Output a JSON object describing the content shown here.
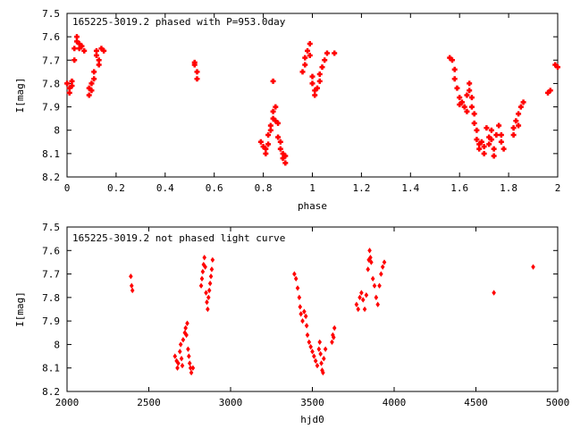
{
  "chart_data": [
    {
      "type": "scatter",
      "title": "165225-3019.2 phased with P=953.0day",
      "xlabel": "phase",
      "ylabel": "I[mag]",
      "xlim": [
        0,
        2
      ],
      "ylim": [
        8.2,
        7.5
      ],
      "y_inverted": true,
      "xticks": [
        0,
        0.2,
        0.4,
        0.6,
        0.8,
        1,
        1.2,
        1.4,
        1.6,
        1.8,
        2
      ],
      "xtick_labels": [
        "0",
        "0.2",
        "0.4",
        "0.6",
        "0.8",
        "1",
        "1.2",
        "1.4",
        "1.6",
        "1.8",
        "2"
      ],
      "yticks": [
        7.5,
        7.6,
        7.7,
        7.8,
        7.9,
        8.0,
        8.1,
        8.2
      ],
      "ytick_labels": [
        "7.5",
        "7.6",
        "7.7",
        "7.8",
        "7.9",
        "8",
        "8.1",
        "8.2"
      ],
      "grid": false,
      "marker": "plus",
      "color": "#ff0000",
      "points": [
        [
          0.0,
          7.8
        ],
        [
          0.01,
          7.82
        ],
        [
          0.01,
          7.84
        ],
        [
          0.02,
          7.79
        ],
        [
          0.02,
          7.81
        ],
        [
          0.03,
          7.7
        ],
        [
          0.03,
          7.65
        ],
        [
          0.04,
          7.62
        ],
        [
          0.04,
          7.6
        ],
        [
          0.05,
          7.63
        ],
        [
          0.05,
          7.65
        ],
        [
          0.06,
          7.64
        ],
        [
          0.07,
          7.66
        ],
        [
          0.09,
          7.82
        ],
        [
          0.09,
          7.85
        ],
        [
          0.1,
          7.83
        ],
        [
          0.1,
          7.8
        ],
        [
          0.11,
          7.78
        ],
        [
          0.11,
          7.75
        ],
        [
          0.12,
          7.68
        ],
        [
          0.12,
          7.66
        ],
        [
          0.13,
          7.7
        ],
        [
          0.13,
          7.72
        ],
        [
          0.14,
          7.65
        ],
        [
          0.15,
          7.66
        ],
        [
          0.52,
          7.71
        ],
        [
          0.52,
          7.72
        ],
        [
          0.53,
          7.75
        ],
        [
          0.53,
          7.78
        ],
        [
          0.79,
          8.05
        ],
        [
          0.8,
          8.07
        ],
        [
          0.81,
          8.08
        ],
        [
          0.81,
          8.1
        ],
        [
          0.82,
          8.06
        ],
        [
          0.82,
          8.02
        ],
        [
          0.83,
          8.0
        ],
        [
          0.83,
          7.98
        ],
        [
          0.84,
          7.95
        ],
        [
          0.84,
          7.92
        ],
        [
          0.84,
          7.79
        ],
        [
          0.85,
          7.9
        ],
        [
          0.85,
          7.96
        ],
        [
          0.86,
          7.97
        ],
        [
          0.86,
          8.03
        ],
        [
          0.87,
          8.05
        ],
        [
          0.87,
          8.08
        ],
        [
          0.88,
          8.1
        ],
        [
          0.88,
          8.12
        ],
        [
          0.89,
          8.14
        ],
        [
          0.89,
          8.11
        ],
        [
          0.96,
          7.75
        ],
        [
          0.97,
          7.72
        ],
        [
          0.97,
          7.69
        ],
        [
          0.98,
          7.66
        ],
        [
          0.99,
          7.63
        ],
        [
          0.99,
          7.68
        ],
        [
          1.0,
          7.77
        ],
        [
          1.0,
          7.8
        ],
        [
          1.01,
          7.83
        ],
        [
          1.01,
          7.85
        ],
        [
          1.02,
          7.82
        ],
        [
          1.03,
          7.79
        ],
        [
          1.03,
          7.76
        ],
        [
          1.04,
          7.73
        ],
        [
          1.05,
          7.7
        ],
        [
          1.06,
          7.67
        ],
        [
          1.09,
          7.67
        ],
        [
          1.56,
          7.69
        ],
        [
          1.57,
          7.7
        ],
        [
          1.58,
          7.74
        ],
        [
          1.58,
          7.78
        ],
        [
          1.59,
          7.82
        ],
        [
          1.6,
          7.86
        ],
        [
          1.6,
          7.89
        ],
        [
          1.61,
          7.88
        ],
        [
          1.62,
          7.9
        ],
        [
          1.63,
          7.92
        ],
        [
          1.63,
          7.85
        ],
        [
          1.64,
          7.8
        ],
        [
          1.64,
          7.83
        ],
        [
          1.65,
          7.86
        ],
        [
          1.65,
          7.9
        ],
        [
          1.66,
          7.93
        ],
        [
          1.66,
          7.97
        ],
        [
          1.67,
          8.0
        ],
        [
          1.67,
          8.04
        ],
        [
          1.68,
          8.06
        ],
        [
          1.68,
          8.08
        ],
        [
          1.69,
          8.05
        ],
        [
          1.7,
          8.1
        ],
        [
          1.7,
          8.07
        ],
        [
          1.71,
          7.99
        ],
        [
          1.72,
          8.03
        ],
        [
          1.72,
          8.06
        ],
        [
          1.73,
          8.0
        ],
        [
          1.73,
          8.04
        ],
        [
          1.74,
          8.08
        ],
        [
          1.74,
          8.11
        ],
        [
          1.75,
          8.02
        ],
        [
          1.76,
          7.98
        ],
        [
          1.77,
          8.02
        ],
        [
          1.77,
          8.05
        ],
        [
          1.78,
          8.08
        ],
        [
          1.82,
          8.02
        ],
        [
          1.82,
          7.99
        ],
        [
          1.83,
          7.96
        ],
        [
          1.84,
          7.93
        ],
        [
          1.84,
          7.98
        ],
        [
          1.85,
          7.9
        ],
        [
          1.86,
          7.88
        ],
        [
          1.96,
          7.84
        ],
        [
          1.97,
          7.83
        ],
        [
          1.99,
          7.72
        ],
        [
          2.0,
          7.73
        ]
      ]
    },
    {
      "type": "scatter",
      "title": "165225-3019.2 not phased light curve",
      "xlabel": "hjd0",
      "ylabel": "I[mag]",
      "xlim": [
        2000,
        5000
      ],
      "ylim": [
        8.2,
        7.5
      ],
      "y_inverted": true,
      "xticks": [
        2000,
        2500,
        3000,
        3500,
        4000,
        4500,
        5000
      ],
      "xtick_labels": [
        "2000",
        "2500",
        "3000",
        "3500",
        "4000",
        "4500",
        "5000"
      ],
      "yticks": [
        7.5,
        7.6,
        7.7,
        7.8,
        7.9,
        8.0,
        8.1,
        8.2
      ],
      "ytick_labels": [
        "7.5",
        "7.6",
        "7.7",
        "7.8",
        "7.9",
        "8",
        "8.1",
        "8.2"
      ],
      "grid": false,
      "marker": "diamond",
      "color": "#ff0000",
      "points": [
        [
          2390,
          7.71
        ],
        [
          2395,
          7.75
        ],
        [
          2400,
          7.77
        ],
        [
          2660,
          8.05
        ],
        [
          2670,
          8.07
        ],
        [
          2675,
          8.1
        ],
        [
          2680,
          8.08
        ],
        [
          2690,
          8.03
        ],
        [
          2695,
          8.0
        ],
        [
          2700,
          8.06
        ],
        [
          2705,
          8.09
        ],
        [
          2710,
          7.98
        ],
        [
          2720,
          7.95
        ],
        [
          2725,
          7.93
        ],
        [
          2730,
          7.96
        ],
        [
          2735,
          7.91
        ],
        [
          2740,
          8.02
        ],
        [
          2745,
          8.05
        ],
        [
          2750,
          8.08
        ],
        [
          2755,
          8.1
        ],
        [
          2760,
          8.12
        ],
        [
          2770,
          8.1
        ],
        [
          2820,
          7.75
        ],
        [
          2825,
          7.72
        ],
        [
          2830,
          7.69
        ],
        [
          2835,
          7.66
        ],
        [
          2840,
          7.63
        ],
        [
          2845,
          7.67
        ],
        [
          2850,
          7.78
        ],
        [
          2855,
          7.82
        ],
        [
          2860,
          7.85
        ],
        [
          2865,
          7.8
        ],
        [
          2870,
          7.77
        ],
        [
          2875,
          7.74
        ],
        [
          2880,
          7.71
        ],
        [
          2885,
          7.68
        ],
        [
          2890,
          7.64
        ],
        [
          3390,
          7.7
        ],
        [
          3400,
          7.72
        ],
        [
          3410,
          7.76
        ],
        [
          3420,
          7.8
        ],
        [
          3425,
          7.84
        ],
        [
          3430,
          7.87
        ],
        [
          3440,
          7.9
        ],
        [
          3450,
          7.86
        ],
        [
          3460,
          7.88
        ],
        [
          3465,
          7.92
        ],
        [
          3470,
          7.96
        ],
        [
          3480,
          7.99
        ],
        [
          3490,
          8.01
        ],
        [
          3500,
          8.03
        ],
        [
          3510,
          8.05
        ],
        [
          3520,
          8.07
        ],
        [
          3530,
          8.09
        ],
        [
          3540,
          8.02
        ],
        [
          3545,
          7.99
        ],
        [
          3550,
          8.04
        ],
        [
          3555,
          8.08
        ],
        [
          3560,
          8.11
        ],
        [
          3565,
          8.12
        ],
        [
          3570,
          8.06
        ],
        [
          3580,
          8.02
        ],
        [
          3620,
          7.99
        ],
        [
          3625,
          7.96
        ],
        [
          3630,
          7.97
        ],
        [
          3635,
          7.93
        ],
        [
          3770,
          7.83
        ],
        [
          3780,
          7.85
        ],
        [
          3790,
          7.8
        ],
        [
          3800,
          7.78
        ],
        [
          3810,
          7.81
        ],
        [
          3820,
          7.85
        ],
        [
          3830,
          7.79
        ],
        [
          3840,
          7.68
        ],
        [
          3845,
          7.64
        ],
        [
          3850,
          7.6
        ],
        [
          3855,
          7.63
        ],
        [
          3860,
          7.65
        ],
        [
          3870,
          7.72
        ],
        [
          3880,
          7.75
        ],
        [
          3890,
          7.8
        ],
        [
          3900,
          7.83
        ],
        [
          3910,
          7.75
        ],
        [
          3920,
          7.7
        ],
        [
          3930,
          7.67
        ],
        [
          3940,
          7.65
        ],
        [
          4610,
          7.78
        ],
        [
          4850,
          7.67
        ]
      ]
    }
  ]
}
